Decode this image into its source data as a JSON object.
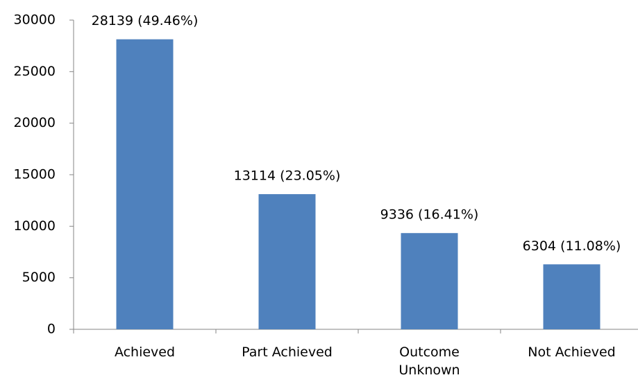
{
  "chart_data": {
    "type": "bar",
    "categories": [
      "Achieved",
      "Part Achieved",
      "Outcome Unknown",
      "Not Achieved"
    ],
    "values": [
      28139,
      13114,
      9336,
      6304
    ],
    "value_labels": [
      "28139 (49.46%)",
      "13114 (23.05%)",
      "9336 (16.41%)",
      "6304 (11.08%)"
    ],
    "color": "#4f81bd",
    "ylim": [
      0,
      30000
    ],
    "yticks": [
      0,
      5000,
      10000,
      15000,
      20000,
      25000,
      30000
    ],
    "grid": false
  }
}
